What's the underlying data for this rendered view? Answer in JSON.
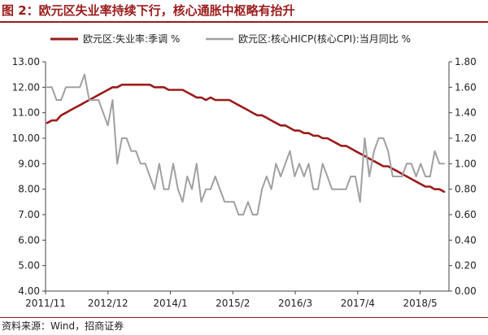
{
  "figure": {
    "title": "图 2：欧元区失业率持续下行，核心通胀中枢略有抬升",
    "source": "资料来源：Wind，招商证券"
  },
  "chart_data": {
    "type": "line",
    "x_ticks": [
      "2011/11",
      "2012/12",
      "2014/1",
      "2015/2",
      "2016/3",
      "2017/4",
      "2018/5"
    ],
    "x_start": "2011/11",
    "x_end": "2018/11",
    "y_left": {
      "min": 4,
      "max": 13,
      "step": 1,
      "tick_labels": [
        "4.00",
        "5.00",
        "6.00",
        "7.00",
        "8.00",
        "9.00",
        "10.00",
        "11.00",
        "12.00",
        "13.00"
      ]
    },
    "y_right": {
      "min": 0,
      "max": 1.8,
      "step": 0.2,
      "tick_labels": [
        "0.00",
        "0.20",
        "0.40",
        "0.60",
        "0.80",
        "1.00",
        "1.20",
        "1.40",
        "1.60",
        "1.80"
      ]
    },
    "legend_position": "top",
    "series": [
      {
        "name": "欧元区:失业率:季调 %",
        "axis": "left",
        "color": "#9b1b1b",
        "values": [
          10.6,
          10.7,
          10.7,
          10.9,
          11.0,
          11.1,
          11.2,
          11.3,
          11.4,
          11.5,
          11.6,
          11.7,
          11.8,
          11.9,
          12.0,
          12.0,
          12.1,
          12.1,
          12.1,
          12.1,
          12.1,
          12.1,
          12.1,
          12.0,
          12.0,
          12.0,
          11.9,
          11.9,
          11.9,
          11.9,
          11.8,
          11.7,
          11.6,
          11.6,
          11.5,
          11.6,
          11.5,
          11.5,
          11.5,
          11.5,
          11.4,
          11.3,
          11.2,
          11.1,
          11.0,
          10.9,
          10.9,
          10.8,
          10.7,
          10.6,
          10.5,
          10.5,
          10.4,
          10.3,
          10.3,
          10.2,
          10.2,
          10.1,
          10.1,
          10.0,
          10.0,
          9.9,
          9.8,
          9.7,
          9.7,
          9.6,
          9.5,
          9.4,
          9.3,
          9.2,
          9.1,
          9.0,
          8.9,
          8.9,
          8.8,
          8.7,
          8.6,
          8.5,
          8.4,
          8.3,
          8.2,
          8.1,
          8.1,
          8.0,
          8.0,
          7.9
        ]
      },
      {
        "name": "欧元区:核心HICP(核心CPI):当月同比 %",
        "axis": "right",
        "color": "#a0a0a0",
        "values": [
          1.6,
          1.6,
          1.5,
          1.5,
          1.6,
          1.6,
          1.6,
          1.6,
          1.7,
          1.5,
          1.5,
          1.5,
          1.4,
          1.3,
          1.5,
          1.0,
          1.2,
          1.2,
          1.1,
          1.1,
          1.0,
          1.0,
          0.9,
          0.8,
          1.0,
          0.8,
          0.8,
          1.0,
          0.8,
          0.7,
          0.9,
          0.8,
          1.0,
          0.7,
          0.8,
          0.8,
          0.9,
          0.8,
          0.7,
          0.7,
          0.7,
          0.6,
          0.6,
          0.7,
          0.6,
          0.6,
          0.8,
          0.9,
          0.8,
          1.0,
          0.9,
          1.0,
          1.1,
          0.9,
          1.0,
          0.9,
          1.0,
          0.8,
          0.8,
          1.0,
          0.9,
          0.8,
          0.8,
          0.8,
          0.8,
          0.9,
          0.9,
          0.7,
          1.2,
          0.9,
          1.1,
          1.2,
          1.2,
          1.1,
          0.9,
          0.9,
          0.9,
          1.0,
          1.0,
          0.9,
          1.0,
          0.9,
          0.9,
          1.1,
          1.0,
          1.0
        ]
      }
    ]
  }
}
